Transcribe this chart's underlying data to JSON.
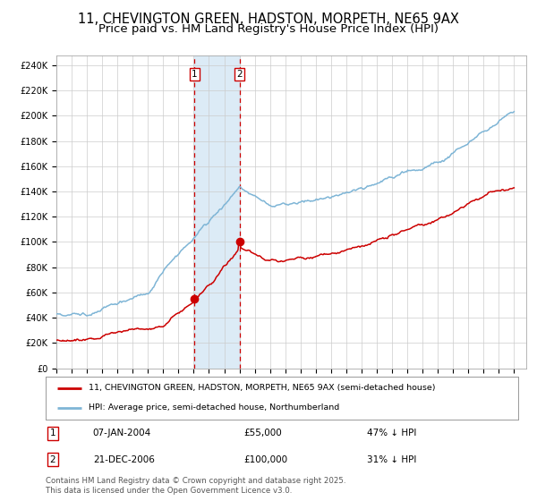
{
  "title": "11, CHEVINGTON GREEN, HADSTON, MORPETH, NE65 9AX",
  "subtitle": "Price paid vs. HM Land Registry's House Price Index (HPI)",
  "title_fontsize": 10.5,
  "subtitle_fontsize": 9.5,
  "yticks": [
    0,
    20000,
    40000,
    60000,
    80000,
    100000,
    120000,
    140000,
    160000,
    180000,
    200000,
    220000,
    240000
  ],
  "ytick_labels": [
    "£0",
    "£20K",
    "£40K",
    "£60K",
    "£80K",
    "£100K",
    "£120K",
    "£140K",
    "£160K",
    "£180K",
    "£200K",
    "£220K",
    "£240K"
  ],
  "ylim": [
    0,
    248000
  ],
  "hpi_color": "#7eb5d6",
  "price_color": "#cc0000",
  "vline_color": "#cc0000",
  "shade_color": "#d6e8f5",
  "marker_color": "#cc0000",
  "legend_label_price": "11, CHEVINGTON GREEN, HADSTON, MORPETH, NE65 9AX (semi-detached house)",
  "legend_label_hpi": "HPI: Average price, semi-detached house, Northumberland",
  "sale1_date": 2004.05,
  "sale1_price": 55000,
  "sale1_label": "1",
  "sale1_display": "07-JAN-2004",
  "sale1_display_price": "£55,000",
  "sale1_display_pct": "47% ↓ HPI",
  "sale2_date": 2007.0,
  "sale2_price": 100000,
  "sale2_label": "2",
  "sale2_display": "21-DEC-2006",
  "sale2_display_price": "£100,000",
  "sale2_display_pct": "31% ↓ HPI",
  "footer": "Contains HM Land Registry data © Crown copyright and database right 2025.\nThis data is licensed under the Open Government Licence v3.0.",
  "background_color": "#ffffff",
  "grid_color": "#cccccc"
}
